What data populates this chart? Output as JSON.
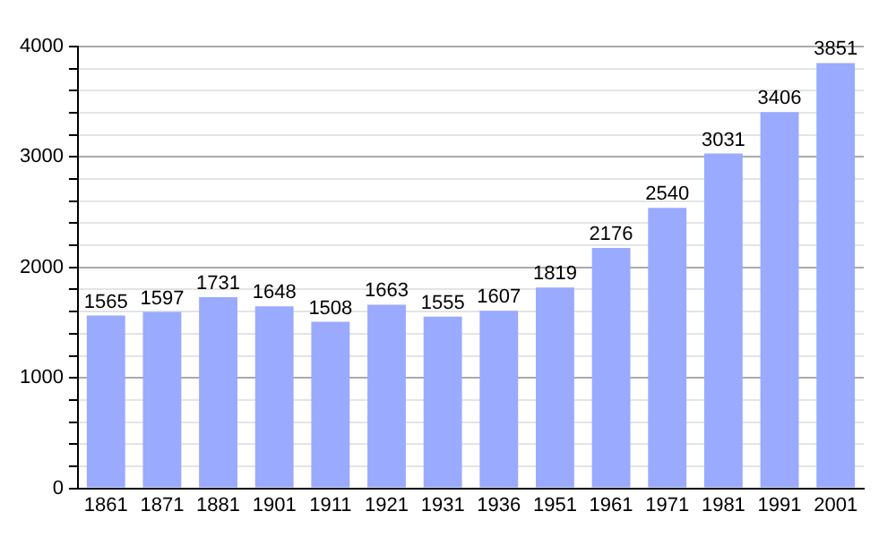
{
  "chart_data": {
    "type": "bar",
    "categories": [
      "1861",
      "1871",
      "1881",
      "1901",
      "1911",
      "1921",
      "1931",
      "1936",
      "1951",
      "1961",
      "1971",
      "1981",
      "1991",
      "2001"
    ],
    "values": [
      1565,
      1597,
      1731,
      1648,
      1508,
      1663,
      1555,
      1607,
      1819,
      2176,
      2540,
      3031,
      3406,
      3851
    ],
    "color": "#99aaff",
    "ylim": [
      0,
      4000
    ],
    "yticks": [
      0,
      {
        "value": 200,
        "label": null
      },
      {
        "value": 400,
        "label": null
      },
      {
        "value": 600,
        "label": null
      },
      {
        "value": 800,
        "label": null
      },
      1000,
      {
        "value": 1200,
        "label": null
      },
      {
        "value": 1400,
        "label": null
      },
      {
        "value": 1600,
        "label": null
      },
      {
        "value": 1800,
        "label": null
      },
      2000,
      {
        "value": 2200,
        "label": null
      },
      {
        "value": 2400,
        "label": null
      },
      {
        "value": 2600,
        "label": null
      },
      {
        "value": 2800,
        "label": null
      },
      3000,
      {
        "value": 3200,
        "label": null
      },
      {
        "value": 3400,
        "label": null
      },
      {
        "value": 3600,
        "label": null
      },
      {
        "value": 3800,
        "label": null
      },
      4000
    ],
    "grid": "y",
    "data_labels": true
  }
}
